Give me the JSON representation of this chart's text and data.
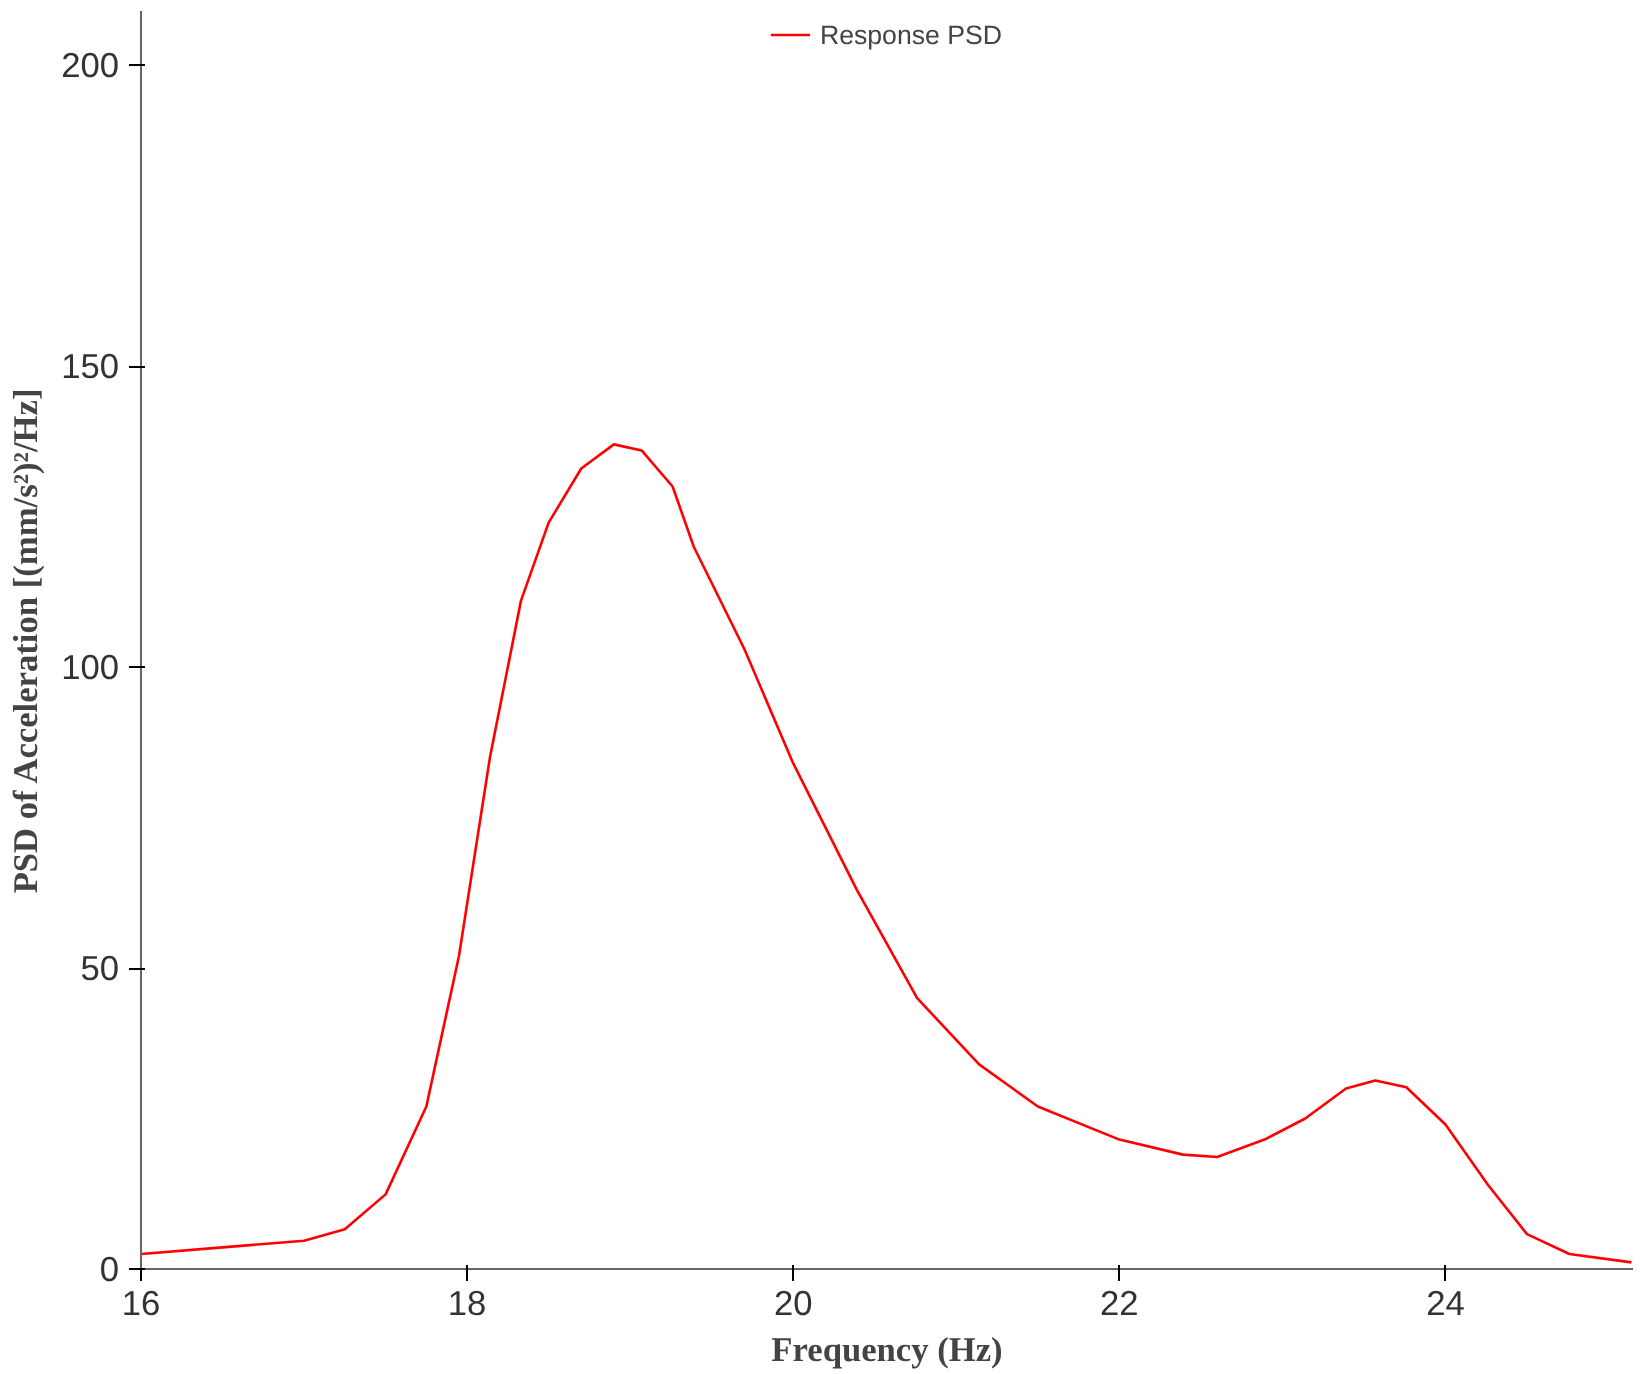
{
  "chart_data": {
    "type": "line",
    "xlabel": "Frequency (Hz)",
    "ylabel": "PSD of Acceleration [(mm/s²)²/Hz]",
    "x": [
      16,
      16.5,
      17,
      17.25,
      17.5,
      17.75,
      17.95,
      18.14,
      18.33,
      18.5,
      18.7,
      18.9,
      19.07,
      19.26,
      19.39,
      19.7,
      20,
      20.39,
      20.76,
      21.14,
      21.5,
      22,
      22.39,
      22.6,
      22.89,
      23.14,
      23.39,
      23.57,
      23.76,
      24,
      24.26,
      24.5,
      24.76,
      25.14
    ],
    "series": [
      {
        "name": "Response PSD",
        "color": "#ff0000",
        "values": [
          2.5,
          3.6,
          4.7,
          6.6,
          12.4,
          27,
          52,
          85,
          111,
          124,
          133,
          137,
          136,
          130,
          120,
          103,
          84,
          63,
          45,
          34,
          27,
          21.5,
          19,
          18.6,
          21.5,
          25,
          30,
          31.3,
          30.2,
          24,
          14,
          5.8,
          2.5,
          1.1
        ]
      }
    ],
    "xlim": [
      16,
      25.15
    ],
    "ylim": [
      0,
      209
    ],
    "xticks": [
      16,
      18,
      20,
      22,
      24
    ],
    "yticks": [
      0,
      50,
      100,
      150,
      200
    ],
    "grid": false,
    "legend": "top",
    "marker": "none",
    "line_style": "solid"
  }
}
